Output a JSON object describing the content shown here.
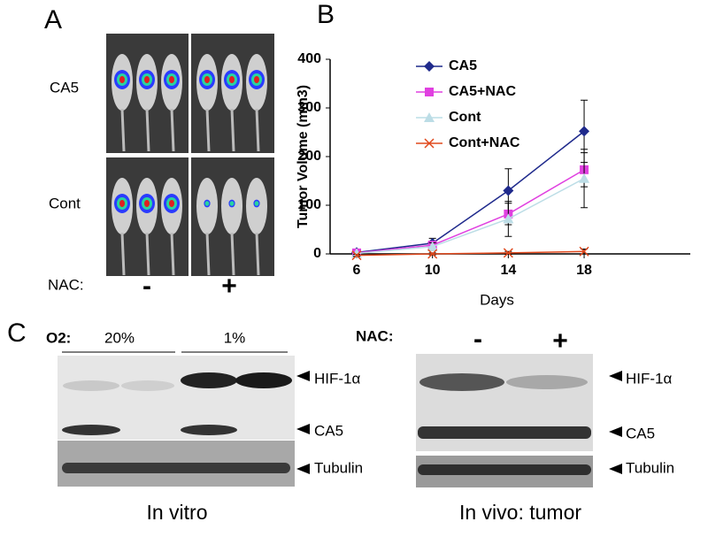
{
  "panel_a": {
    "label": "A",
    "rows": [
      "CA5",
      "Cont"
    ],
    "nac_label": "NAC:",
    "nac_values": [
      "-",
      "+"
    ]
  },
  "panel_b": {
    "label": "B"
  },
  "chart_data": {
    "type": "line",
    "ylabel": "Tumor Volume (mm3)",
    "xlabel": "Days",
    "x": [
      6,
      10,
      14,
      18
    ],
    "xlim": [
      4.6,
      23.6
    ],
    "xticks": [
      6,
      10,
      14,
      18
    ],
    "ylim": [
      0,
      400
    ],
    "yticks": [
      0,
      100,
      200,
      300,
      400
    ],
    "legend": "upper left",
    "series": [
      {
        "name": "CA5",
        "color": "#1f2a8c",
        "marker": "diamond",
        "values": [
          3,
          22,
          130,
          252
        ],
        "errors": [
          2,
          10,
          45,
          64
        ]
      },
      {
        "name": "CA5+NAC",
        "color": "#e040e0",
        "marker": "square",
        "values": [
          2,
          18,
          82,
          173
        ],
        "errors": [
          2,
          8,
          22,
          35
        ]
      },
      {
        "name": "Cont",
        "color": "#bcdde6",
        "marker": "triangle",
        "values": [
          1,
          15,
          72,
          155
        ],
        "errors": [
          2,
          8,
          36,
          60
        ]
      },
      {
        "name": "Cont+NAC",
        "color": "#e0481c",
        "marker": "x",
        "values": [
          -3,
          0,
          2,
          5
        ],
        "errors": [
          2,
          2,
          3,
          5
        ]
      }
    ]
  },
  "panel_c": {
    "label": "C",
    "in_vitro": {
      "condition_label": "O2:",
      "conditions": [
        "20%",
        "1%"
      ],
      "bands": [
        "HIF-1α",
        "CA5",
        "Tubulin"
      ],
      "caption": "In vitro"
    },
    "in_vivo": {
      "condition_label": "NAC:",
      "conditions": [
        "-",
        "+"
      ],
      "bands": [
        "HIF-1α",
        "CA5",
        "Tubulin"
      ],
      "caption": "In vivo: tumor"
    }
  }
}
